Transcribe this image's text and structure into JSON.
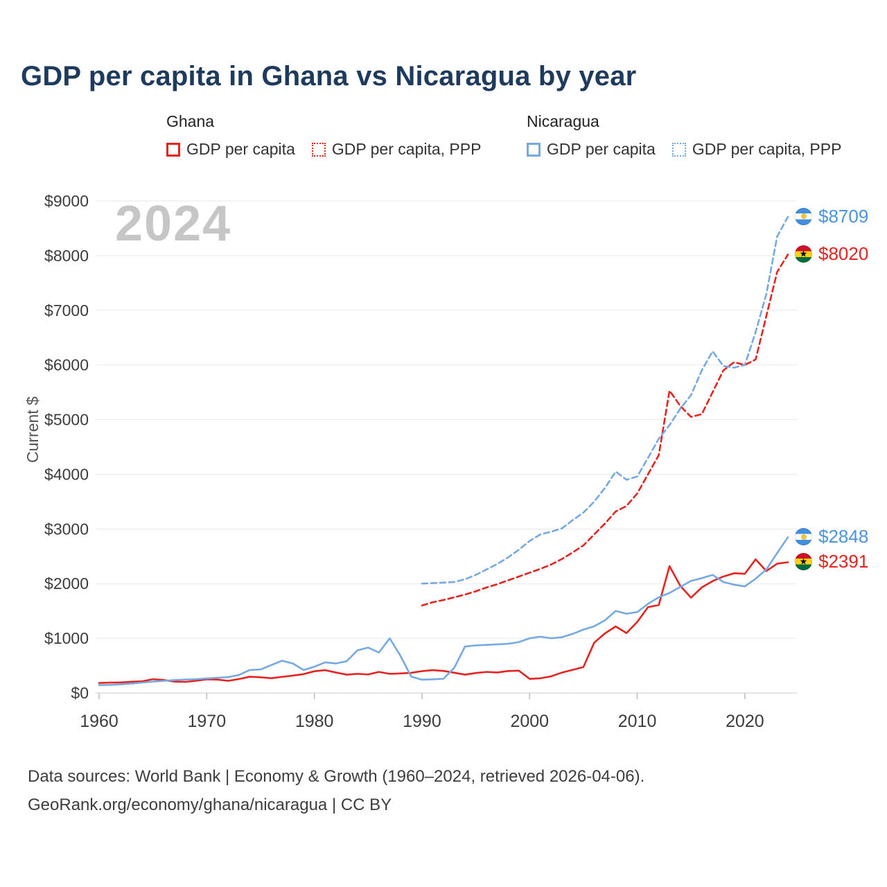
{
  "watermark": "2024",
  "legend": {
    "groups": [
      {
        "country": "Ghana",
        "color": "#e5231f",
        "items": [
          {
            "label": "GDP per capita",
            "style": "solid"
          },
          {
            "label": "GDP per capita, PPP",
            "style": "dotted"
          }
        ]
      },
      {
        "country": "Nicaragua",
        "color": "#74a9e1",
        "items": [
          {
            "label": "GDP per capita",
            "style": "solid"
          },
          {
            "label": "GDP per capita, PPP",
            "style": "dotted"
          }
        ]
      }
    ]
  },
  "end_labels": [
    {
      "text": "$8709",
      "value": 8709,
      "country": "nicaragua",
      "color": "#4a94e0"
    },
    {
      "text": "$8020",
      "value": 8020,
      "country": "ghana",
      "color": "#e5231f"
    },
    {
      "text": "$2848",
      "value": 2848,
      "country": "nicaragua",
      "color": "#4a94e0"
    },
    {
      "text": "$2391",
      "value": 2391,
      "country": "ghana",
      "color": "#e5231f"
    }
  ],
  "footer": {
    "line1": "Data sources: World Bank | Economy & Growth (1960–2024, retrieved 2026-04-06).",
    "line2": "GeoRank.org/economy/ghana/nicaragua | CC BY"
  },
  "chart_data": {
    "type": "line",
    "title": "GDP per capita in Ghana vs Nicaragua by year",
    "xlabel": "",
    "ylabel": "Current $",
    "xlim": [
      1960,
      2024
    ],
    "ylim": [
      0,
      9000
    ],
    "x_ticks": [
      1960,
      1970,
      1980,
      1990,
      2000,
      2010,
      2020
    ],
    "y_ticks": [
      0,
      1000,
      2000,
      3000,
      4000,
      5000,
      6000,
      7000,
      8000,
      9000
    ],
    "grid": true,
    "legend_position": "top",
    "series": [
      {
        "name": "Ghana GDP per capita",
        "color": "#e5231f",
        "dashed": false,
        "x_start": 1960,
        "values": [
          183,
          190,
          193,
          205,
          214,
          252,
          238,
          208,
          203,
          222,
          250,
          245,
          222,
          255,
          297,
          287,
          270,
          295,
          318,
          345,
          397,
          417,
          375,
          335,
          350,
          339,
          385,
          350,
          357,
          368,
          399,
          418,
          403,
          370,
          335,
          365,
          385,
          375,
          402,
          408,
          258,
          269,
          304,
          373,
          423,
          474,
          920,
          1090,
          1217,
          1096,
          1299,
          1570,
          1608,
          2320,
          1960,
          1743,
          1931,
          2046,
          2130,
          2190,
          2180,
          2445,
          2230,
          2365,
          2391
        ]
      },
      {
        "name": "Ghana GDP per capita, PPP",
        "color": "#e5231f",
        "dashed": true,
        "x_start": 1990,
        "values": [
          1600,
          1660,
          1700,
          1750,
          1800,
          1860,
          1930,
          1990,
          2060,
          2130,
          2200,
          2270,
          2350,
          2450,
          2570,
          2700,
          2900,
          3100,
          3320,
          3420,
          3650,
          4000,
          4350,
          5530,
          5250,
          5050,
          5100,
          5500,
          5900,
          6050,
          6000,
          6100,
          6900,
          7700,
          8020
        ]
      },
      {
        "name": "Nicaragua GDP per capita",
        "color": "#74a9e1",
        "dashed": false,
        "x_start": 1960,
        "values": [
          143,
          148,
          158,
          172,
          190,
          208,
          222,
          235,
          245,
          252,
          265,
          278,
          290,
          330,
          420,
          430,
          510,
          590,
          540,
          420,
          480,
          560,
          540,
          580,
          780,
          830,
          740,
          1000,
          680,
          300,
          243,
          250,
          260,
          460,
          850,
          870,
          880,
          890,
          900,
          930,
          1000,
          1030,
          1000,
          1020,
          1080,
          1160,
          1220,
          1330,
          1500,
          1450,
          1480,
          1630,
          1750,
          1830,
          1940,
          2050,
          2100,
          2160,
          2030,
          1980,
          1950,
          2090,
          2260,
          2560,
          2848
        ]
      },
      {
        "name": "Nicaragua GDP per capita, PPP",
        "color": "#74a9e1",
        "dashed": true,
        "x_start": 1990,
        "values": [
          2000,
          2010,
          2020,
          2030,
          2080,
          2160,
          2260,
          2360,
          2480,
          2620,
          2780,
          2900,
          2950,
          3010,
          3160,
          3300,
          3500,
          3750,
          4050,
          3900,
          3960,
          4300,
          4650,
          4900,
          5200,
          5450,
          5900,
          6250,
          5980,
          5950,
          6000,
          6600,
          7300,
          8350,
          8709
        ]
      }
    ]
  }
}
